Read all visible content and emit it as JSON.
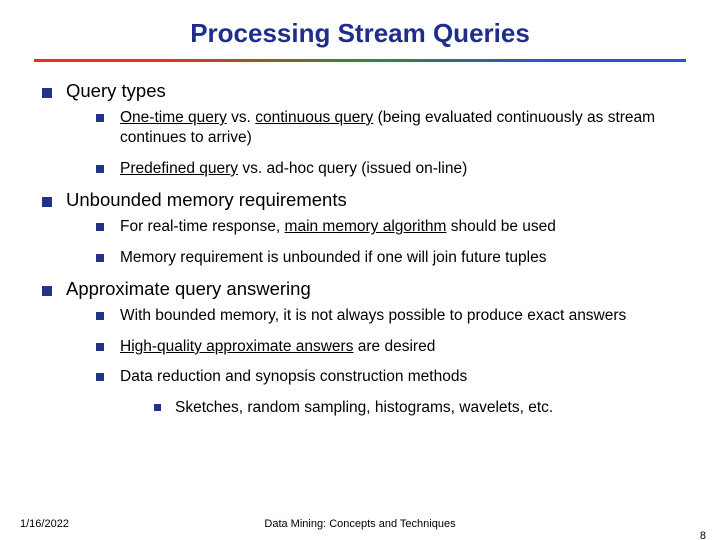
{
  "colors": {
    "title": "#1e2e8a",
    "bullet": "#203388",
    "text": "#000000",
    "footer": "#000000",
    "hr_start": "#e83214",
    "hr_mid": "#338a2f",
    "hr_end": "#2554d6"
  },
  "title": "Processing Stream Queries",
  "sections": [
    {
      "label": "Query types",
      "items": [
        {
          "html": "<span class='u'>One-time query</span> vs. <span class='u'>continuous query</span> (being evaluated continuously as stream continues to arrive)"
        },
        {
          "html": "<span class='u'>Predefined query</span> vs. ad-hoc query (issued on-line)"
        }
      ]
    },
    {
      "label": "Unbounded memory requirements",
      "items": [
        {
          "html": "For real-time response, <span class='u'>main memory algorithm</span> should be used"
        },
        {
          "html": "Memory requirement is unbounded if one will join future tuples"
        }
      ]
    },
    {
      "label": "Approximate query answering",
      "items": [
        {
          "html": "With bounded memory, it is not always possible to produce exact answers"
        },
        {
          "html": "<span class='u'>High-quality approximate answers</span> are desired"
        },
        {
          "html": "Data reduction and synopsis construction methods",
          "sub": [
            {
              "html": "Sketches, random sampling, histograms, wavelets, etc."
            }
          ]
        }
      ]
    }
  ],
  "footer": {
    "date": "1/16/2022",
    "center": "Data Mining: Concepts and Techniques",
    "page": "8"
  }
}
